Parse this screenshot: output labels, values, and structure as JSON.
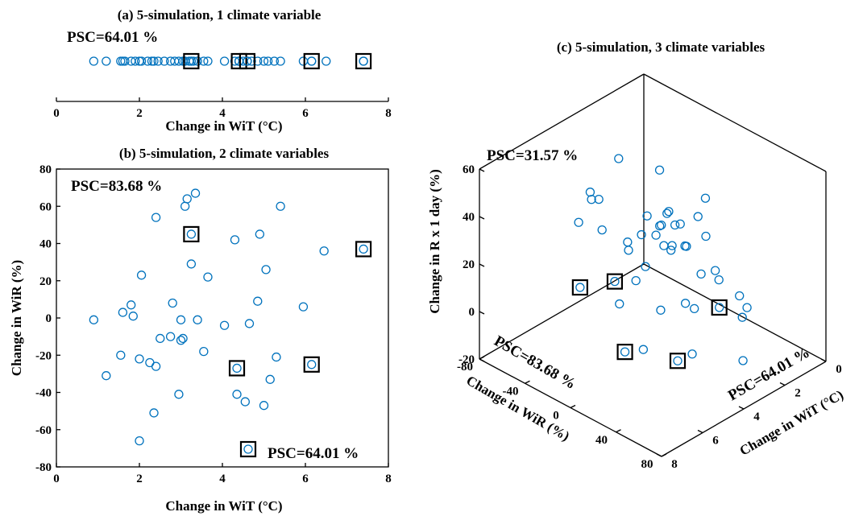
{
  "colors": {
    "marker": "#0072BD",
    "highlight": "#000000"
  },
  "chart_data": [
    {
      "id": "a",
      "type": "scatter",
      "title": "(a) 5-simulation, 1 climate variable",
      "xlabel": "Change in WiT (°C)",
      "ylabel": "",
      "xlim": [
        0,
        8
      ],
      "xticks": [
        "0",
        "2",
        "4",
        "6",
        "8"
      ],
      "psc_label": "PSC=64.01 %",
      "x": [
        0.9,
        1.2,
        1.55,
        1.6,
        1.65,
        1.8,
        1.9,
        2.0,
        2.05,
        2.2,
        2.3,
        2.35,
        2.45,
        2.6,
        2.75,
        2.85,
        2.95,
        3.05,
        3.1,
        3.2,
        3.3,
        3.4,
        3.55,
        3.65,
        4.05,
        4.3,
        4.4,
        4.5,
        4.7,
        4.85,
        5.0,
        5.1,
        5.25,
        5.4,
        5.95,
        6.5,
        3.25,
        4.4,
        4.6,
        6.15,
        7.4
      ],
      "highlighted_x": [
        3.25,
        4.4,
        4.6,
        6.15,
        7.4
      ]
    },
    {
      "id": "b",
      "type": "scatter",
      "title": "(b) 5-simulation, 2 climate variables",
      "xlabel": "Change in WiT (°C)",
      "ylabel": "Change in WiR (%)",
      "xlim": [
        0,
        8
      ],
      "ylim": [
        -80,
        80
      ],
      "xticks": [
        "0",
        "2",
        "4",
        "6",
        "8"
      ],
      "yticks": [
        "80",
        "60",
        "40",
        "20",
        "0",
        "-20",
        "-40",
        "-60",
        "-80"
      ],
      "psc_label_top": "PSC=83.68 %",
      "psc_label_bottom": "PSC=64.01 %",
      "points": [
        [
          0.9,
          -1
        ],
        [
          1.2,
          -31
        ],
        [
          1.55,
          -20
        ],
        [
          1.6,
          3
        ],
        [
          1.8,
          7
        ],
        [
          1.85,
          1
        ],
        [
          2.0,
          -22
        ],
        [
          2.0,
          -66
        ],
        [
          2.05,
          23
        ],
        [
          2.25,
          -24
        ],
        [
          2.35,
          -51
        ],
        [
          2.4,
          -26
        ],
        [
          2.4,
          54
        ],
        [
          2.5,
          -11
        ],
        [
          2.75,
          -10
        ],
        [
          2.8,
          8
        ],
        [
          2.95,
          -41
        ],
        [
          3.0,
          -12
        ],
        [
          3.0,
          -1
        ],
        [
          3.05,
          -11
        ],
        [
          3.1,
          60
        ],
        [
          3.15,
          64
        ],
        [
          3.25,
          29
        ],
        [
          3.35,
          67
        ],
        [
          3.4,
          -1
        ],
        [
          3.55,
          -18
        ],
        [
          3.65,
          22
        ],
        [
          4.05,
          -4
        ],
        [
          4.3,
          42
        ],
        [
          4.35,
          -41
        ],
        [
          4.55,
          -45
        ],
        [
          4.65,
          -3
        ],
        [
          4.85,
          9
        ],
        [
          4.9,
          45
        ],
        [
          5.0,
          -47
        ],
        [
          5.05,
          26
        ],
        [
          5.15,
          -33
        ],
        [
          5.3,
          -21
        ],
        [
          5.4,
          60
        ],
        [
          5.95,
          6
        ],
        [
          6.45,
          36
        ]
      ],
      "highlighted_points": [
        [
          3.25,
          45
        ],
        [
          4.35,
          -27
        ],
        [
          6.15,
          -25
        ],
        [
          7.4,
          37
        ]
      ],
      "legend_marker_highlighted": true
    },
    {
      "id": "c",
      "type": "scatter3d",
      "title": "(c) 5-simulation, 3 climate variables",
      "xlabel": "Change in WiT (°C)",
      "ylabel": "Change in WiR (%)",
      "zlabel": "Change in R x 1 day (%)",
      "xlim": [
        0,
        8
      ],
      "ylim": [
        -80,
        80
      ],
      "zlim": [
        -20,
        60
      ],
      "xticks": [
        "0",
        "2",
        "4",
        "6",
        "8"
      ],
      "yticks": [
        "-80",
        "-40",
        "0",
        "40",
        "80"
      ],
      "zticks": [
        "60",
        "40",
        "20",
        "0",
        "-20"
      ],
      "psc_label_top": "PSC=31.57 %",
      "psc_label_wir": "PSC=83.68 %",
      "psc_label_wit": "PSC=64.01 %",
      "points": [
        [
          0.9,
          -1,
          2
        ],
        [
          1.2,
          -31,
          15
        ],
        [
          1.55,
          -20,
          20
        ],
        [
          1.6,
          3,
          37
        ],
        [
          1.8,
          7,
          23
        ],
        [
          1.85,
          1,
          30
        ],
        [
          2.0,
          -22,
          27
        ],
        [
          2.0,
          -66,
          38
        ],
        [
          2.05,
          23,
          10
        ],
        [
          2.25,
          -24,
          22
        ],
        [
          2.35,
          -51,
          5
        ],
        [
          2.4,
          -26,
          18
        ],
        [
          2.4,
          54,
          8
        ],
        [
          2.5,
          -11,
          16
        ],
        [
          2.75,
          -10,
          33
        ],
        [
          2.8,
          8,
          24
        ],
        [
          2.95,
          -41,
          14
        ],
        [
          3.0,
          -12,
          52
        ],
        [
          3.0,
          -1,
          23
        ],
        [
          3.05,
          -11,
          29
        ],
        [
          3.1,
          60,
          18
        ],
        [
          3.15,
          64,
          -8
        ],
        [
          3.25,
          29,
          20
        ],
        [
          3.35,
          67,
          12
        ],
        [
          3.4,
          -1,
          25
        ],
        [
          3.55,
          -18,
          26
        ],
        [
          3.65,
          22,
          32
        ],
        [
          4.05,
          -4,
          40
        ],
        [
          4.3,
          42,
          14
        ],
        [
          4.35,
          -41,
          39
        ],
        [
          4.55,
          -45,
          42
        ],
        [
          4.65,
          -3,
          16
        ],
        [
          4.85,
          9,
          26
        ],
        [
          4.9,
          45,
          20
        ],
        [
          5.0,
          -47,
          31
        ],
        [
          5.05,
          26,
          13
        ],
        [
          5.15,
          -33,
          45
        ],
        [
          5.3,
          -21,
          36
        ],
        [
          5.4,
          60,
          5
        ],
        [
          5.95,
          6,
          15
        ],
        [
          6.45,
          36,
          6
        ]
      ],
      "highlighted_points": [
        [
          3.25,
          45,
          10
        ],
        [
          4.35,
          -27,
          8
        ],
        [
          6.15,
          -25,
          15
        ],
        [
          7.4,
          37,
          10
        ],
        [
          5.0,
          40,
          -5
        ]
      ]
    }
  ]
}
